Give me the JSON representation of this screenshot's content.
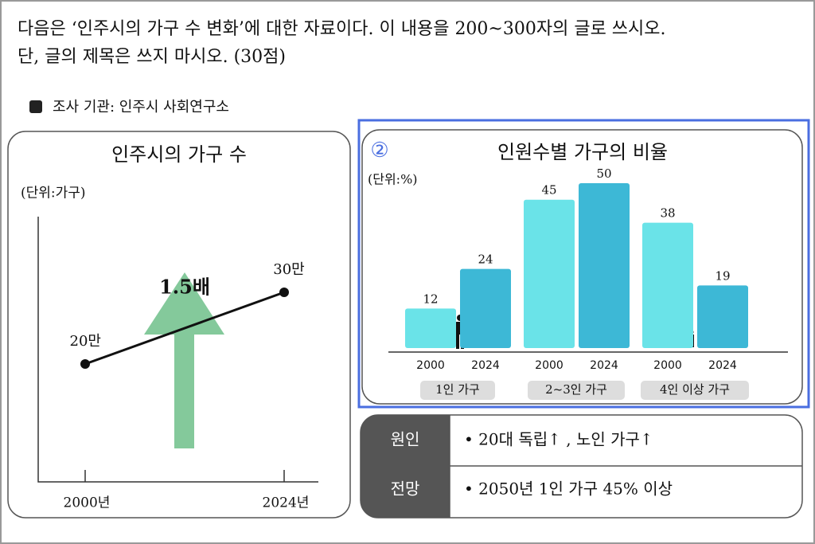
{
  "question": [
    "다음은 ‘인주시의 가구 수 변화’에 대한 자료이다. 이 내용을 200~300자의 글로 쓰시오.",
    "단, 글의 제목은 쓰지 마시오. (30점)"
  ],
  "source": "조사 기관: 인주시 사회연구소",
  "left_chart": {
    "title": "인주시의 가구 수",
    "unit": "(단위:가구)",
    "categories": [
      "2000년",
      "2024년"
    ],
    "values": [
      200000,
      300000
    ],
    "value_labels": [
      "20만",
      "30만"
    ],
    "annotation": "1.5배"
  },
  "right_chart": {
    "marker": "②",
    "title": "인원수별 가구의 비율",
    "unit": "(단위:%)",
    "groups": [
      "1인 가구",
      "2~3인 가구",
      "4인 이상 가구"
    ],
    "series": [
      {
        "name": "2000",
        "color": "#6ae3e8",
        "values": [
          12,
          45,
          38
        ]
      },
      {
        "name": "2024",
        "color": "#3db8d6",
        "values": [
          24,
          50,
          19
        ]
      }
    ]
  },
  "table": {
    "rows": [
      [
        "원인",
        "• 20대 독립↑ , 노인 가구↑"
      ],
      [
        "전망",
        "• 2050년 1인 가구 45% 이상"
      ]
    ]
  }
}
